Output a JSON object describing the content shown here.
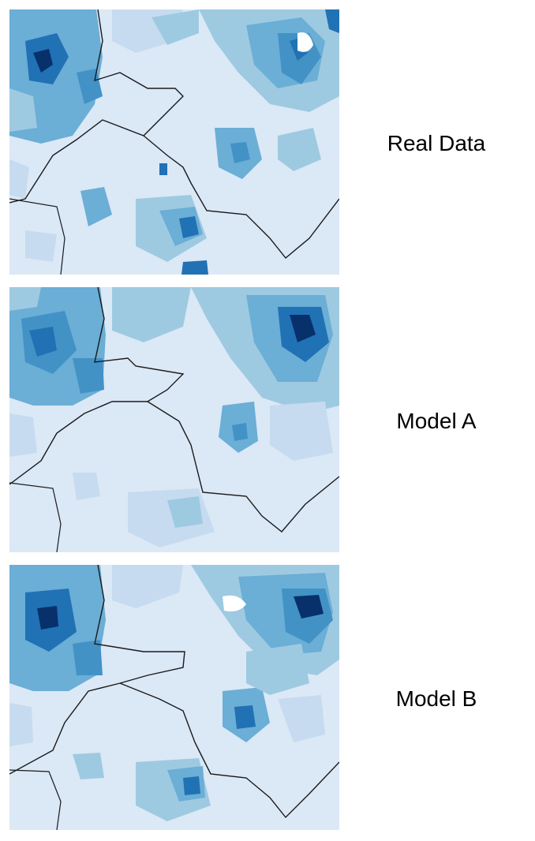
{
  "panels": [
    {
      "label": "Real Data",
      "variant": "real"
    },
    {
      "label": "Model A",
      "variant": "a"
    },
    {
      "label": "Model B",
      "variant": "b"
    }
  ],
  "colors": {
    "background": "#ffffff",
    "map_base": "#dbe8f6",
    "shade_light": "#c6dbef",
    "shade_mid_light": "#9ecae1",
    "shade_mid": "#6baed6",
    "shade_mid_dark": "#4292c6",
    "shade_dark": "#2171b5",
    "shade_darkest": "#08306b",
    "boundary": "#1a1a1a"
  }
}
